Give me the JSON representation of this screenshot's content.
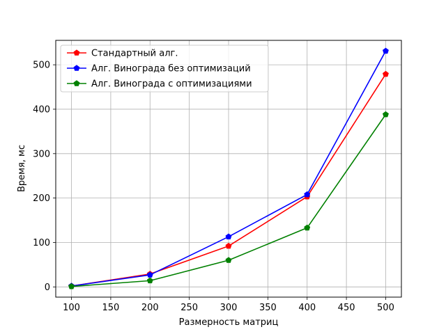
{
  "chart_data": {
    "type": "line",
    "xlabel": "Размерность матриц",
    "ylabel": "Время, мс",
    "xlim": [
      80,
      520
    ],
    "ylim": [
      -23,
      555
    ],
    "xticks": [
      100,
      150,
      200,
      250,
      300,
      350,
      400,
      450,
      500
    ],
    "yticks": [
      0,
      100,
      200,
      300,
      400,
      500
    ],
    "grid": true,
    "legend_position": "top-left",
    "x": [
      100,
      200,
      300,
      400,
      500
    ],
    "series": [
      {
        "name": "Стандартный алг.",
        "color": "#ff0000",
        "values": [
          2,
          29,
          92,
          203,
          479
        ]
      },
      {
        "name": "Алг. Винограда без оптимизаций",
        "color": "#0000ff",
        "values": [
          2,
          27,
          113,
          208,
          531
        ]
      },
      {
        "name": "Алг. Винограда с оптимизациями",
        "color": "#008000",
        "values": [
          1,
          14,
          60,
          133,
          388
        ]
      }
    ]
  }
}
